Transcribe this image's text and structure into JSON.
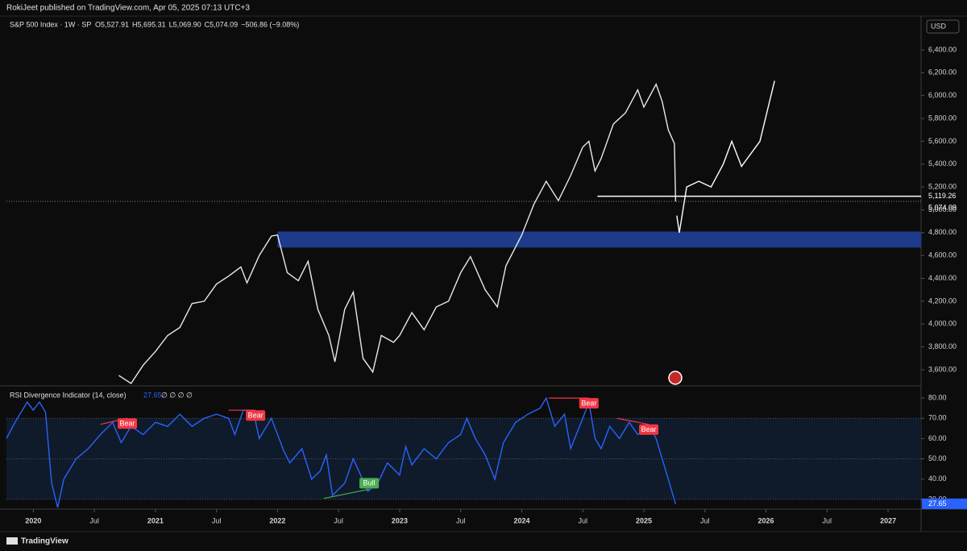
{
  "header": {
    "publisher": "RokiJeet published on TradingView.com, Apr 05, 2025 07:13 UTC+3",
    "brand": "TradingView"
  },
  "chart_data": [
    {
      "type": "line",
      "title": "S&P 500 Index · 1W · SP",
      "legend_values": [
        "O5,527.91",
        "H5,695.31",
        "L5,069.90",
        "C5,074.09",
        "−506.86 (−9.08%)"
      ],
      "currency": "USD",
      "xlim": [
        2019.78,
        2027.27
      ],
      "ylim": [
        3466,
        6682
      ],
      "yticks": [
        {
          "value": 3600,
          "label": "3,600.00"
        },
        {
          "value": 3800,
          "label": "3,800.00"
        },
        {
          "value": 4000,
          "label": "4,000.00"
        },
        {
          "value": 4200,
          "label": "4,200.00"
        },
        {
          "value": 4400,
          "label": "4,400.00"
        },
        {
          "value": 4600,
          "label": "4,600.00"
        },
        {
          "value": 4800,
          "label": "4,800.00"
        },
        {
          "value": 5000,
          "label": "5,000.00"
        },
        {
          "value": 5200,
          "label": "5,200.00"
        },
        {
          "value": 5400,
          "label": "5,400.00"
        },
        {
          "value": 5600,
          "label": "5,600.00"
        },
        {
          "value": 5800,
          "label": "5,800.00"
        },
        {
          "value": 6000,
          "label": "6,000.00"
        },
        {
          "value": 6200,
          "label": "6,200.00"
        },
        {
          "value": 6400,
          "label": "6,400.00"
        }
      ],
      "series": [
        {
          "color": "#e8e8e8",
          "x": [
            2020.7,
            2020.8,
            2020.9,
            2021.0,
            2021.1,
            2021.2,
            2021.3,
            2021.4,
            2021.5,
            2021.6,
            2021.7,
            2021.75,
            2021.85,
            2021.95,
            2022.0,
            2022.08,
            2022.17,
            2022.25,
            2022.33,
            2022.42,
            2022.47,
            2022.55,
            2022.62,
            2022.7,
            2022.78,
            2022.85,
            2022.95,
            2023.0,
            2023.1,
            2023.2,
            2023.3,
            2023.4,
            2023.5,
            2023.58,
            2023.7,
            2023.8,
            2023.87,
            2024.0,
            2024.1,
            2024.2,
            2024.3,
            2024.4,
            2024.5,
            2024.55,
            2024.6,
            2024.65,
            2024.75,
            2024.85,
            2024.95,
            2025.0,
            2025.1,
            2025.15,
            2025.2,
            2025.25,
            2025.26
          ],
          "values": [
            3550,
            3480,
            3640,
            3760,
            3900,
            3970,
            4180,
            4200,
            4350,
            4420,
            4500,
            4360,
            4600,
            4770,
            4780,
            4450,
            4380,
            4550,
            4130,
            3900,
            3670,
            4130,
            4280,
            3700,
            3580,
            3900,
            3840,
            3900,
            4100,
            3950,
            4150,
            4200,
            4450,
            4590,
            4300,
            4150,
            4510,
            4780,
            5050,
            5250,
            5080,
            5300,
            5550,
            5600,
            5340,
            5450,
            5750,
            5850,
            6050,
            5900,
            6100,
            5950,
            5700,
            5580,
            5074.09
          ]
        },
        {
          "color": "#ffffff",
          "x": [
            2025.27,
            2025.29,
            2025.35,
            2025.45,
            2025.55,
            2025.65,
            2025.72,
            2025.8,
            2025.95,
            2026.07
          ],
          "values": [
            4950,
            4800,
            5200,
            5250,
            5200,
            5400,
            5600,
            5380,
            5600,
            6130
          ]
        }
      ],
      "last_value_label": "5,074.09",
      "level": {
        "value": 5119.26,
        "label": "5,119.26",
        "x_start": 2024.62,
        "color": "#ffffff"
      },
      "zone": {
        "from": 4670,
        "to": 4810,
        "x_start": 2022.0,
        "color": "#1e3a8a"
      }
    },
    {
      "type": "line",
      "title": "RSI Divergence Indicator (14, close)",
      "flags": "∅ ∅ ∅ ∅",
      "xlim": [
        2019.78,
        2027.27
      ],
      "ylim": [
        26,
        85.6
      ],
      "xticks": [
        {
          "value": 2020,
          "label": "2020"
        },
        {
          "value": 2020.5,
          "label": "Jul"
        },
        {
          "value": 2021,
          "label": "2021"
        },
        {
          "value": 2021.5,
          "label": "Jul"
        },
        {
          "value": 2022,
          "label": "2022"
        },
        {
          "value": 2022.5,
          "label": "Jul"
        },
        {
          "value": 2023,
          "label": "2023"
        },
        {
          "value": 2023.5,
          "label": "Jul"
        },
        {
          "value": 2024,
          "label": "2024"
        },
        {
          "value": 2024.5,
          "label": "Jul"
        },
        {
          "value": 2025,
          "label": "2025"
        },
        {
          "value": 2025.5,
          "label": "Jul"
        },
        {
          "value": 2026,
          "label": "2026"
        },
        {
          "value": 2026.5,
          "label": "Jul"
        },
        {
          "value": 2027,
          "label": "2027"
        }
      ],
      "yticks": [
        {
          "value": 30,
          "label": "30.00"
        },
        {
          "value": 40,
          "label": "40.00"
        },
        {
          "value": 50,
          "label": "50.00"
        },
        {
          "value": 60,
          "label": "60.00"
        },
        {
          "value": 70,
          "label": "70.00"
        },
        {
          "value": 80,
          "label": "80.00"
        }
      ],
      "bands": [
        30,
        50,
        70
      ],
      "series": [
        {
          "color": "#2962ff",
          "x": [
            2019.78,
            2019.85,
            2019.95,
            2020.0,
            2020.05,
            2020.1,
            2020.15,
            2020.2,
            2020.25,
            2020.35,
            2020.45,
            2020.55,
            2020.65,
            2020.72,
            2020.8,
            2020.9,
            2021.0,
            2021.1,
            2021.2,
            2021.3,
            2021.4,
            2021.5,
            2021.6,
            2021.65,
            2021.72,
            2021.8,
            2021.85,
            2021.95,
            2022.05,
            2022.1,
            2022.2,
            2022.28,
            2022.35,
            2022.4,
            2022.45,
            2022.55,
            2022.62,
            2022.68,
            2022.74,
            2022.82,
            2022.9,
            2023.0,
            2023.05,
            2023.1,
            2023.2,
            2023.3,
            2023.4,
            2023.5,
            2023.55,
            2023.62,
            2023.7,
            2023.78,
            2023.85,
            2023.95,
            2024.05,
            2024.15,
            2024.2,
            2024.27,
            2024.35,
            2024.4,
            2024.5,
            2024.55,
            2024.6,
            2024.65,
            2024.72,
            2024.8,
            2024.88,
            2024.95,
            2025.05,
            2025.1,
            2025.15,
            2025.2,
            2025.26
          ],
          "values": [
            60,
            68,
            78,
            74,
            78,
            73,
            38,
            26,
            40,
            50,
            55,
            62,
            68,
            58,
            66,
            62,
            68,
            66,
            72,
            66,
            70,
            72,
            70,
            62,
            74,
            74,
            60,
            70,
            54,
            48,
            55,
            40,
            44,
            52,
            32,
            38,
            50,
            42,
            34,
            38,
            48,
            42,
            56,
            47,
            55,
            50,
            58,
            62,
            70,
            60,
            52,
            40,
            58,
            68,
            72,
            75,
            80,
            66,
            72,
            55,
            70,
            78,
            60,
            55,
            66,
            60,
            68,
            62,
            66,
            60,
            50,
            40,
            27.65
          ]
        }
      ],
      "signals": [
        {
          "label": "Bear",
          "color": "#f23645",
          "x1": 2020.55,
          "y1": 67,
          "x2": 2020.77,
          "y2": 70
        },
        {
          "label": "Bear",
          "color": "#f23645",
          "x1": 2021.6,
          "y1": 74,
          "x2": 2021.82,
          "y2": 74
        },
        {
          "label": "Bull",
          "color": "#4caf50",
          "x1": 2022.38,
          "y1": 30.5,
          "x2": 2022.75,
          "y2": 35
        },
        {
          "label": "Bear",
          "color": "#f23645",
          "x1": 2024.22,
          "y1": 80,
          "x2": 2024.55,
          "y2": 80
        },
        {
          "label": "Bear",
          "color": "#f23645",
          "x1": 2024.78,
          "y1": 70,
          "x2": 2025.04,
          "y2": 67
        }
      ]
    }
  ]
}
